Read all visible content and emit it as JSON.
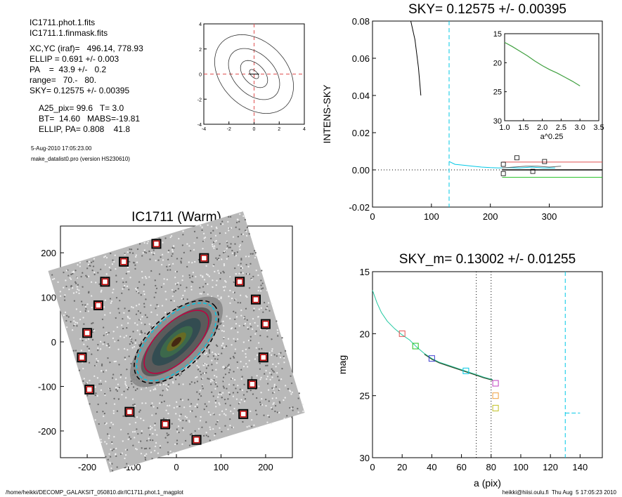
{
  "info": {
    "file1": "IC1711.phot.1.fits",
    "file2": "IC1711.1.finmask.fits",
    "xcyc": "XC,YC (iraf)=   496.14, 778.93",
    "ellip": "ELLIP = 0.691 +/- 0.003",
    "pa": "PA    =  43.9 +/-   0.2",
    "range": "range=   70.-   80.",
    "sky": "SKY= 0.12575 +/- 0.00395",
    "a25": "A25_pix= 99.6   T= 3.0",
    "bt": "BT=  14.60   MABS=-19.81",
    "ellip_pa": "ELLIP, PA= 0.808    41.8",
    "date": "5-Aug-2010 17:05:23.00",
    "program": "make_datalist0.pro (version HS230610)"
  },
  "footer": {
    "left": "/home/heikki/DECOMP_GALAKSIT_050810.dir/IC1711.phot.1_magplot",
    "right": "heikki@hiisi.oulu.fi  Thu Aug  5 17:05:23 2010"
  },
  "chart_data": [
    {
      "id": "contour",
      "type": "line",
      "title": "",
      "xlim": [
        -4,
        4
      ],
      "ylim": [
        -4,
        4
      ],
      "xticks": [
        -4,
        -2,
        0,
        2,
        4
      ],
      "yticks": [
        -4,
        -2,
        0,
        2,
        4
      ],
      "center": [
        0,
        0
      ],
      "contour_ellipses": [
        {
          "rx": 0.45,
          "ry": 0.25,
          "angle": 45
        },
        {
          "rx": 1.3,
          "ry": 0.8,
          "angle": 45
        },
        {
          "rx": 2.4,
          "ry": 1.6,
          "angle": 45
        },
        {
          "rx": 3.6,
          "ry": 2.6,
          "angle": 45
        }
      ]
    },
    {
      "id": "sky",
      "type": "line",
      "title": "SKY= 0.12575 +/- 0.00395",
      "ylabel": "INTENS-SKY",
      "xlim": [
        0,
        390
      ],
      "ylim": [
        -0.02,
        0.08
      ],
      "xticks": [
        0,
        100,
        200,
        300
      ],
      "yticks": [
        "0.08",
        "0.06",
        "0.04",
        "0.02",
        "0.00",
        "-0.02"
      ],
      "vline_x": 130,
      "series": [
        {
          "color": "#000000",
          "points": [
            [
              65,
              0.08
            ],
            [
              72,
              0.07
            ],
            [
              78,
              0.055
            ],
            [
              82,
              0.04
            ]
          ]
        },
        {
          "color": "#00c8e6",
          "points": [
            [
              130,
              0.0045
            ],
            [
              140,
              0.003
            ],
            [
              155,
              0.0025
            ],
            [
              170,
              0.002
            ],
            [
              185,
              0.0015
            ],
            [
              200,
              0.0012
            ],
            [
              215,
              0.001
            ],
            [
              230,
              0.0012
            ],
            [
              250,
              0.001
            ],
            [
              270,
              0.0015
            ],
            [
              290,
              0.001
            ],
            [
              310,
              0.001
            ]
          ]
        },
        {
          "color": "#666666",
          "points": [
            [
              220,
              0.001
            ],
            [
              240,
              0.0015
            ],
            [
              260,
              0.002
            ],
            [
              280,
              0.002
            ],
            [
              300,
              0.0015
            ],
            [
              320,
              0.002
            ]
          ]
        }
      ],
      "squares": [
        [
          222,
          0.003
        ],
        [
          222,
          -0.002
        ],
        [
          245,
          0.0065
        ],
        [
          272,
          -0.0008
        ],
        [
          292,
          0.0045
        ]
      ],
      "hlines": [
        {
          "y": 0.0042,
          "x0": 220,
          "color": "#e05050"
        },
        {
          "y": 0.0,
          "x0": 220,
          "color": "#000000"
        },
        {
          "y": -0.004,
          "x0": 220,
          "color": "#20c020"
        }
      ],
      "inset": {
        "xlabel": "a^0.25",
        "xlim": [
          1.0,
          3.5
        ],
        "ylim": [
          15,
          30
        ],
        "xticks": [
          "1.0",
          "1.5",
          "2.0",
          "2.5",
          "3.0",
          "3.5"
        ],
        "yticks": [
          "15",
          "20",
          "25",
          "30"
        ],
        "points": [
          [
            1.0,
            16.5
          ],
          [
            1.2,
            17.2
          ],
          [
            1.4,
            18.0
          ],
          [
            1.6,
            18.8
          ],
          [
            1.8,
            19.7
          ],
          [
            2.0,
            20.5
          ],
          [
            2.2,
            21.2
          ],
          [
            2.4,
            21.8
          ],
          [
            2.6,
            22.5
          ],
          [
            2.8,
            23.2
          ],
          [
            3.0,
            24.0
          ]
        ]
      }
    },
    {
      "id": "image",
      "type": "scatter",
      "title": "IC1711 (Warm)",
      "xlim": [
        -260,
        260
      ],
      "ylim": [
        -260,
        260
      ],
      "xticks": [
        -200,
        -100,
        0,
        100,
        200
      ],
      "yticks": [
        200,
        100,
        0,
        -100,
        -200
      ],
      "galaxy_angle": 44,
      "mask_boxes": [
        [
          -45,
          220
        ],
        [
          62,
          188
        ],
        [
          -118,
          180
        ],
        [
          142,
          135
        ],
        [
          -160,
          135
        ],
        [
          -175,
          82
        ],
        [
          178,
          95
        ],
        [
          -200,
          20
        ],
        [
          200,
          40
        ],
        [
          -212,
          -35
        ],
        [
          195,
          -35
        ],
        [
          -195,
          -107
        ],
        [
          170,
          -95
        ],
        [
          -105,
          -157
        ],
        [
          150,
          -162
        ],
        [
          -25,
          -185
        ],
        [
          45,
          -220
        ]
      ],
      "ellipses": [
        {
          "rx": 92,
          "ry": 42,
          "color": "#c00040"
        },
        {
          "rx": 112,
          "ry": 55,
          "color": "#00c8e6"
        },
        {
          "rx": 118,
          "ry": 60,
          "color": "#000000"
        }
      ]
    },
    {
      "id": "mag",
      "type": "line",
      "title": "SKY_m=  0.13002 +/- 0.01255",
      "xlabel": "a (pix)",
      "ylabel": "mag",
      "xlim": [
        0,
        155
      ],
      "ylim": [
        15,
        30
      ],
      "xticks": [
        0,
        20,
        40,
        60,
        80,
        100,
        120,
        140
      ],
      "yticks": [
        15,
        20,
        25,
        30
      ],
      "vlines_dotted": [
        70,
        80
      ],
      "vline_dashed": 130,
      "sky_segment": {
        "x0": 130,
        "x1": 140,
        "y": 26.4
      },
      "profile": [
        [
          0,
          16.5
        ],
        [
          3,
          17.5
        ],
        [
          6,
          18.3
        ],
        [
          10,
          19.0
        ],
        [
          15,
          19.6
        ],
        [
          20,
          20.1
        ],
        [
          25,
          20.5
        ],
        [
          30,
          21.1
        ],
        [
          35,
          21.6
        ],
        [
          40,
          22.0
        ],
        [
          45,
          22.3
        ],
        [
          50,
          22.5
        ],
        [
          55,
          22.7
        ],
        [
          60,
          22.9
        ],
        [
          65,
          23.1
        ],
        [
          70,
          23.3
        ],
        [
          75,
          23.5
        ],
        [
          81,
          23.7
        ]
      ],
      "squares": [
        {
          "x": 20,
          "y": 20.0,
          "color": "#e05050"
        },
        {
          "x": 29,
          "y": 21.0,
          "color": "#20c020"
        },
        {
          "x": 40,
          "y": 22.0,
          "color": "#4040d0"
        },
        {
          "x": 63,
          "y": 23.0,
          "color": "#00c8e6"
        },
        {
          "x": 83,
          "y": 24.0,
          "color": "#c040c0"
        },
        {
          "x": 83,
          "y": 25.0,
          "color": "#f0a040"
        },
        {
          "x": 83,
          "y": 26.0,
          "color": "#c0c020"
        }
      ]
    }
  ]
}
